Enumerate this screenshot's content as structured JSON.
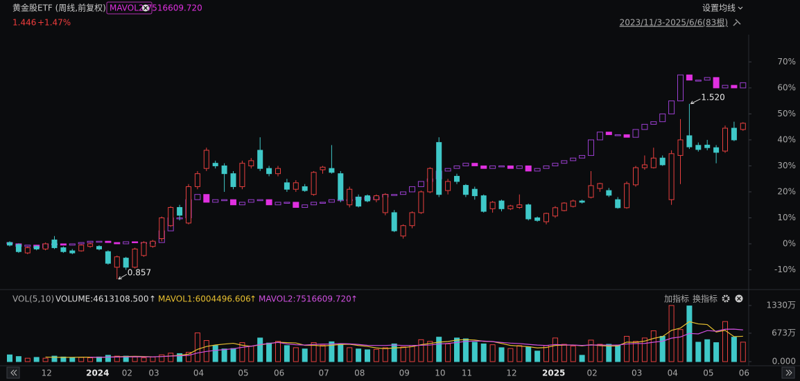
{
  "header": {
    "title": "黄金股ETF (周线,前复权)",
    "price": "1.446",
    "change": "+1.47%",
    "ma_button": "设置均线",
    "range": "2023/11/3-2025/6/6(83根)"
  },
  "volume_header": {
    "indicator": "VOL(5,10)",
    "volume": "VOLUME:4613108.500"
  },
  "buttons": {
    "add": "加指标",
    "switch": "换指标"
  },
  "chart_data": [
    {
      "type": "candlestick",
      "categories": [
        null,
        null,
        null,
        null,
        "12",
        null,
        null,
        null,
        null,
        "2024",
        null,
        null,
        null,
        "02",
        null,
        null,
        "03",
        null,
        null,
        null,
        null,
        "04",
        null,
        null,
        null,
        null,
        "05",
        null,
        null,
        null,
        "06",
        null,
        null,
        null,
        null,
        "07",
        null,
        null,
        null,
        "08",
        null,
        null,
        null,
        null,
        "09",
        null,
        null,
        null,
        "10",
        null,
        null,
        "11",
        null,
        null,
        null,
        null,
        "12",
        null,
        null,
        null,
        "2025",
        null,
        null,
        null,
        null,
        "02",
        null,
        null,
        null,
        null,
        "03",
        null,
        null,
        null,
        "04",
        null,
        null,
        null,
        "05",
        null,
        null,
        null,
        "06"
      ],
      "series": [
        {
          "up_color": "#e8403f",
          "down_color": "#3fc8c8",
          "ohlc": [
            [
              0.5,
              1,
              -1,
              -0.5
            ],
            [
              -0.3,
              0.2,
              -3.5,
              -3
            ],
            [
              -3.5,
              -1,
              -4,
              -1.5
            ],
            [
              -1,
              -0.5,
              -2.5,
              -2
            ],
            [
              -2,
              0.5,
              -2.5,
              0
            ],
            [
              1.5,
              3,
              -2,
              -1.5
            ],
            [
              -1.5,
              -1,
              -3.5,
              -3
            ],
            [
              -2.7,
              -2,
              -4,
              -3.5
            ],
            [
              -2.7,
              -0.2,
              -3,
              -0.5
            ],
            [
              -1,
              0.5,
              -1.5,
              0
            ],
            [
              -1,
              -0.5,
              -2.5,
              -2
            ],
            [
              -3,
              -2.5,
              -8,
              -7.5
            ],
            [
              -9,
              -4.5,
              -13.6,
              -5
            ],
            [
              -5.5,
              -5,
              -10,
              -9
            ],
            [
              -9,
              -1.5,
              -9.5,
              -2
            ],
            [
              -4.5,
              1,
              -5,
              0.5
            ],
            [
              -1,
              1.5,
              -1.5,
              1
            ],
            [
              2,
              10.5,
              1,
              10
            ],
            [
              7,
              14.5,
              6.5,
              14
            ],
            [
              14,
              15,
              9,
              11
            ],
            [
              8,
              23,
              7.5,
              22
            ],
            [
              22,
              28,
              21,
              27
            ],
            [
              29,
              37,
              28,
              36
            ],
            [
              31,
              32,
              29,
              30
            ],
            [
              30,
              31,
              20,
              27
            ],
            [
              27,
              28,
              21,
              22
            ],
            [
              22,
              32,
              21,
              31
            ],
            [
              30,
              33,
              29,
              32
            ],
            [
              36,
              41,
              28,
              29
            ],
            [
              29,
              30,
              26,
              27
            ],
            [
              27,
              30,
              26,
              29
            ],
            [
              23.5,
              25,
              20,
              21
            ],
            [
              21,
              24.5,
              20,
              23.5
            ],
            [
              22,
              23,
              20,
              20.5
            ],
            [
              19,
              28,
              18.5,
              27.5
            ],
            [
              28.5,
              30,
              27,
              29.5
            ],
            [
              29,
              38,
              27,
              27.5
            ],
            [
              27,
              28,
              16,
              17
            ],
            [
              15,
              22,
              14,
              21
            ],
            [
              18,
              19,
              14,
              14.5
            ],
            [
              18.5,
              19,
              16,
              16.5
            ],
            [
              17,
              19,
              16,
              18.5
            ],
            [
              12,
              19.5,
              11,
              19
            ],
            [
              12,
              13,
              4.5,
              5
            ],
            [
              3,
              7.5,
              2,
              7
            ],
            [
              7,
              12.5,
              6,
              12
            ],
            [
              12,
              20.5,
              11.5,
              20
            ],
            [
              20,
              29.5,
              19.5,
              29
            ],
            [
              39,
              41,
              18,
              19
            ],
            [
              20.5,
              25,
              19,
              24
            ],
            [
              26,
              27,
              23,
              24
            ],
            [
              22.5,
              23,
              18,
              19
            ],
            [
              21,
              22,
              17,
              18.5
            ],
            [
              18.5,
              19,
              12,
              12.5
            ],
            [
              13.5,
              16.5,
              12,
              16
            ],
            [
              16.5,
              17,
              12.5,
              13.5
            ],
            [
              13.5,
              15,
              13,
              14.6
            ],
            [
              14,
              19,
              13.5,
              15
            ],
            [
              15,
              15.5,
              9,
              9.6
            ],
            [
              10,
              10.5,
              8.5,
              9
            ],
            [
              8.5,
              12,
              7.5,
              11.7
            ],
            [
              10.7,
              14.5,
              10,
              13.9
            ],
            [
              12.8,
              16,
              12.5,
              15.7
            ],
            [
              14.4,
              17,
              14,
              16.5
            ],
            [
              16.5,
              17,
              15.5,
              16
            ],
            [
              17.9,
              28,
              17.5,
              22.4
            ],
            [
              21.3,
              23.5,
              20,
              23.2
            ],
            [
              20.5,
              21.5,
              18,
              18.7
            ],
            [
              17,
              18,
              13.5,
              13.9
            ],
            [
              13.9,
              24,
              13.5,
              23.2
            ],
            [
              22.7,
              30,
              22,
              29.3
            ],
            [
              29.3,
              34,
              28.5,
              30.4
            ],
            [
              29.3,
              37,
              29,
              33
            ],
            [
              33,
              34,
              30,
              30.4
            ],
            [
              17,
              36,
              15,
              34.7
            ],
            [
              34,
              48,
              23,
              40
            ],
            [
              41.6,
              53.9,
              36.5,
              37.3
            ],
            [
              37.9,
              39,
              35.5,
              36.3
            ],
            [
              38,
              40,
              36,
              37
            ],
            [
              37,
              38,
              31,
              35.2
            ],
            [
              35.7,
              45.5,
              35,
              44.5
            ],
            [
              44.5,
              47,
              39.5,
              40
            ],
            [
              44,
              46.8,
              43.5,
              46.4
            ]
          ]
        },
        {
          "name": "黄金ETF",
          "up_color": "#9b3fd0",
          "down_color": "#e030e0",
          "open": [
            0.5,
            0,
            -1,
            -0.5,
            -1.5,
            0,
            0,
            -0.5,
            0,
            0.5,
            1,
            1,
            0.5,
            0,
            0.8,
            0.5,
            0.5,
            0.5,
            5,
            10,
            10,
            17,
            19,
            16,
            17,
            17,
            15,
            16,
            17,
            17,
            15,
            16,
            16,
            14,
            15,
            16,
            16,
            17,
            17,
            17,
            18,
            17,
            18,
            19,
            19,
            20,
            22,
            24,
            25,
            28,
            29,
            30,
            31,
            30,
            29,
            30,
            30,
            29,
            30,
            28,
            29,
            30,
            31,
            32,
            33,
            34,
            40,
            43,
            42,
            42,
            41,
            44,
            46,
            47,
            50,
            55,
            65,
            63,
            63,
            64,
            60,
            61,
            60
          ],
          "close": [
            0,
            -1,
            -0.5,
            -1.5,
            0,
            0,
            -0.5,
            0,
            0.5,
            1,
            1,
            0.5,
            0,
            0.8,
            0.5,
            0.5,
            0.5,
            5,
            10,
            10,
            17,
            19,
            16,
            17,
            17,
            15,
            16,
            17,
            17,
            15,
            16,
            16,
            14,
            15,
            16,
            16,
            17,
            17,
            17,
            18,
            17,
            18,
            19,
            19,
            20,
            22,
            24,
            25,
            28,
            29,
            30,
            31,
            30,
            29,
            30,
            30,
            29,
            30,
            28,
            29,
            30,
            31,
            32,
            33,
            34,
            40,
            43,
            42,
            42,
            41,
            44,
            46,
            47,
            50,
            55,
            65,
            63,
            63,
            64,
            60,
            61,
            60,
            62
          ]
        }
      ],
      "ylim": [
        -16.8,
        77.3
      ],
      "yticks": [
        {
          "value": 70,
          "label": "70%"
        },
        {
          "value": 60,
          "label": "60%"
        },
        {
          "value": 50,
          "label": "50%"
        },
        {
          "value": 40,
          "label": "40%"
        },
        {
          "value": 30,
          "label": "30%"
        },
        {
          "value": 20,
          "label": "20%"
        },
        {
          "value": 10,
          "label": "10%"
        },
        {
          "value": 0,
          "label": "0%"
        },
        {
          "value": -10,
          "label": "-10%"
        }
      ],
      "low_label": "0.857",
      "high_label": "1.520"
    },
    {
      "type": "volume",
      "values": [
        160,
        120,
        80,
        100,
        80,
        130,
        110,
        90,
        100,
        90,
        110,
        150,
        130,
        130,
        110,
        90,
        110,
        160,
        200,
        190,
        220,
        680,
        500,
        380,
        300,
        310,
        450,
        370,
        560,
        440,
        480,
        380,
        330,
        300,
        450,
        390,
        470,
        420,
        330,
        300,
        280,
        290,
        330,
        420,
        350,
        380,
        520,
        480,
        580,
        420,
        560,
        540,
        460,
        420,
        400,
        330,
        310,
        380,
        350,
        250,
        380,
        560,
        410,
        370,
        150,
        510,
        410,
        410,
        380,
        600,
        480,
        560,
        730,
        600,
        1330,
        760,
        1320,
        460,
        520,
        450,
        950,
        580,
        461.3
      ],
      "series": [
        {
          "name": "MAVOL1:6004496.606",
          "color": "#e8c030",
          "values": [
            null,
            null,
            null,
            null,
            108,
            102,
            100,
            102,
            106,
            104,
            100,
            108,
            116,
            122,
            126,
            122,
            114,
            120,
            134,
            150,
            176,
            290,
            358,
            394,
            416,
            434,
            388,
            362,
            398,
            426,
            460,
            450,
            442,
            386,
            388,
            370,
            388,
            406,
            412,
            382,
            360,
            324,
            306,
            324,
            334,
            354,
            400,
            430,
            462,
            476,
            512,
            520,
            512,
            480,
            476,
            430,
            384,
            368,
            354,
            324,
            334,
            384,
            390,
            394,
            374,
            400,
            380,
            370,
            372,
            462,
            456,
            486,
            550,
            594,
            740,
            796,
            948,
            894,
            878,
            702,
            740,
            592,
            600.4
          ]
        },
        {
          "name": "MAVOL2:7516609.720",
          "color": "#d050e0",
          "values": [
            null,
            null,
            null,
            null,
            null,
            null,
            null,
            null,
            null,
            105,
            104,
            107,
            109,
            112,
            115,
            112,
            113,
            120,
            130,
            138,
            148,
            204,
            241,
            266,
            285,
            305,
            339,
            365,
            405,
            430,
            455,
            420,
            400,
            392,
            407,
            415,
            417,
            428,
            421,
            406,
            386,
            383,
            383,
            393,
            383,
            382,
            387,
            393,
            418,
            431,
            454,
            479,
            486,
            486,
            474,
            455,
            438,
            428,
            408,
            392,
            382,
            405,
            397,
            392,
            384,
            392,
            395,
            391,
            392,
            418,
            428,
            431,
            460,
            483,
            556,
            584,
            668,
            657,
            736,
            721,
            768,
            770,
            751.7
          ]
        }
      ],
      "ylim": [
        0,
        1330
      ],
      "yticks": [
        {
          "value": 1330,
          "label": "1330万"
        },
        {
          "value": 673,
          "label": "673万"
        },
        {
          "value": 0,
          "label": "0.000"
        }
      ]
    }
  ]
}
